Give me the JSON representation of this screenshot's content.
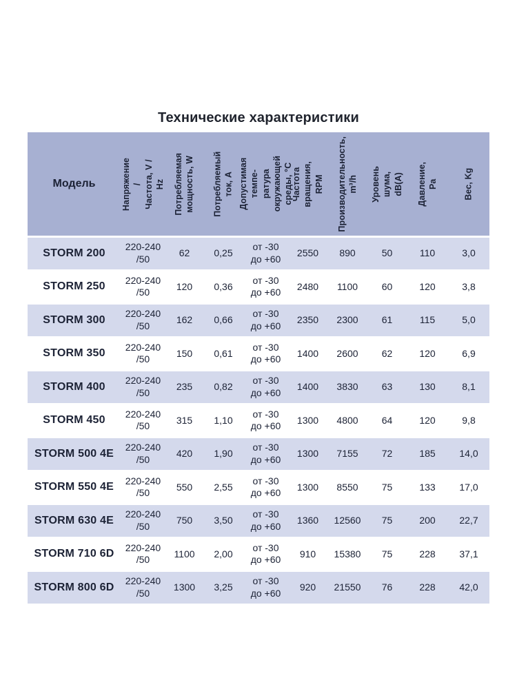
{
  "title": "Технические характеристики",
  "colors": {
    "header_bg": "#a7b0d2",
    "row_alt_bg": "#d4d9ec",
    "row_bg": "#ffffff",
    "text": "#1c2235",
    "title": "#20242e"
  },
  "table": {
    "model_header": "Модель",
    "columns": [
      {
        "key": "voltage",
        "label": "Напряжение /\nЧастота, V / Hz"
      },
      {
        "key": "power",
        "label": "Потребляемая\nмощность, W"
      },
      {
        "key": "current",
        "label": "Потребляемый\nток, А"
      },
      {
        "key": "temp",
        "label": "Допустимая темпе-\nратура окружающей\nсреды, °С"
      },
      {
        "key": "rpm",
        "label": "Частота вращения,\nRPM"
      },
      {
        "key": "airflow",
        "label": "Производительность,\nm³/h"
      },
      {
        "key": "noise",
        "label": "Уровень шума,\ndB(A)"
      },
      {
        "key": "pressure",
        "label": "Давление, Pa"
      },
      {
        "key": "weight",
        "label": "Вес, Kg"
      }
    ],
    "rows": [
      {
        "model": "STORM 200",
        "voltage": "220-240\n/50",
        "power": "62",
        "current": "0,25",
        "temp": "от -30\nдо +60",
        "rpm": "2550",
        "airflow": "890",
        "noise": "50",
        "pressure": "110",
        "weight": "3,0"
      },
      {
        "model": "STORM 250",
        "voltage": "220-240\n/50",
        "power": "120",
        "current": "0,36",
        "temp": "от -30\nдо +60",
        "rpm": "2480",
        "airflow": "1100",
        "noise": "60",
        "pressure": "120",
        "weight": "3,8"
      },
      {
        "model": "STORM 300",
        "voltage": "220-240\n/50",
        "power": "162",
        "current": "0,66",
        "temp": "от -30\nдо +60",
        "rpm": "2350",
        "airflow": "2300",
        "noise": "61",
        "pressure": "115",
        "weight": "5,0"
      },
      {
        "model": "STORM 350",
        "voltage": "220-240\n/50",
        "power": "150",
        "current": "0,61",
        "temp": "от -30\nдо +60",
        "rpm": "1400",
        "airflow": "2600",
        "noise": "62",
        "pressure": "120",
        "weight": "6,9"
      },
      {
        "model": "STORM 400",
        "voltage": "220-240\n/50",
        "power": "235",
        "current": "0,82",
        "temp": "от -30\nдо +60",
        "rpm": "1400",
        "airflow": "3830",
        "noise": "63",
        "pressure": "130",
        "weight": "8,1"
      },
      {
        "model": "STORM 450",
        "voltage": "220-240\n/50",
        "power": "315",
        "current": "1,10",
        "temp": "от -30\nдо +60",
        "rpm": "1300",
        "airflow": "4800",
        "noise": "64",
        "pressure": "120",
        "weight": "9,8"
      },
      {
        "model": "STORM 500 4E",
        "voltage": "220-240\n/50",
        "power": "420",
        "current": "1,90",
        "temp": "от -30\nдо +60",
        "rpm": "1300",
        "airflow": "7155",
        "noise": "72",
        "pressure": "185",
        "weight": "14,0"
      },
      {
        "model": "STORM 550 4E",
        "voltage": "220-240\n/50",
        "power": "550",
        "current": "2,55",
        "temp": "от -30\nдо +60",
        "rpm": "1300",
        "airflow": "8550",
        "noise": "75",
        "pressure": "133",
        "weight": "17,0"
      },
      {
        "model": "STORM 630 4E",
        "voltage": "220-240\n/50",
        "power": "750",
        "current": "3,50",
        "temp": "от -30\nдо +60",
        "rpm": "1360",
        "airflow": "12560",
        "noise": "75",
        "pressure": "200",
        "weight": "22,7"
      },
      {
        "model": "STORM 710 6D",
        "voltage": "220-240\n/50",
        "power": "1100",
        "current": "2,00",
        "temp": "от -30\nдо +60",
        "rpm": "910",
        "airflow": "15380",
        "noise": "75",
        "pressure": "228",
        "weight": "37,1"
      },
      {
        "model": "STORM 800 6D",
        "voltage": "220-240\n/50",
        "power": "1300",
        "current": "3,25",
        "temp": "от -30\nдо +60",
        "rpm": "920",
        "airflow": "21550",
        "noise": "76",
        "pressure": "228",
        "weight": "42,0"
      }
    ]
  }
}
